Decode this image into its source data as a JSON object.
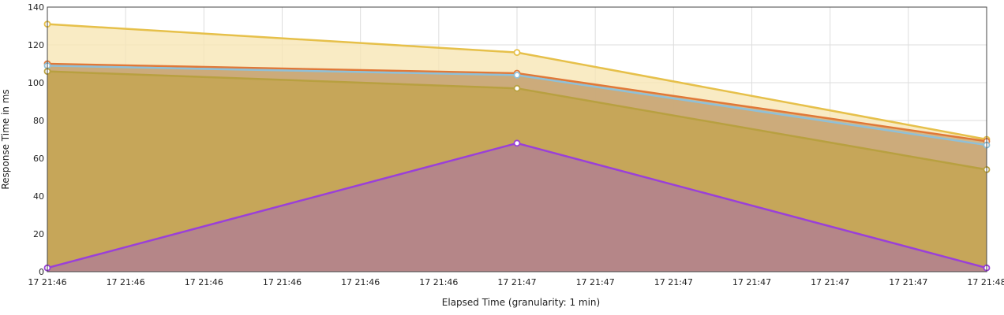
{
  "chart_data": {
    "type": "area",
    "xlabel": "Elapsed Time (granularity: 1 min)",
    "ylabel": "Response Time in ms",
    "ylim": [
      0,
      140
    ],
    "yticks": [
      0,
      20,
      40,
      60,
      80,
      100,
      120,
      140
    ],
    "xtick_labels": [
      "17 21:46",
      "17 21:46",
      "17 21:46",
      "17 21:46",
      "17 21:46",
      "17 21:46",
      "17 21:47",
      "17 21:47",
      "17 21:47",
      "17 21:47",
      "17 21:47",
      "17 21:47",
      "17 21:48"
    ],
    "x_points": [
      "17 21:46",
      "17 21:47",
      "17 21:48"
    ],
    "grid": true,
    "legend": "none",
    "series": [
      {
        "values": [
          131,
          116,
          70
        ],
        "color": "#e6c04a",
        "fill": "#f7e6b3"
      },
      {
        "values": [
          110,
          105,
          69
        ],
        "color": "#e07838",
        "fill": "#c9a877"
      },
      {
        "values": [
          109,
          104,
          67
        ],
        "color": "#8fc0d8",
        "fill": "#c9a877"
      },
      {
        "values": [
          106,
          97,
          54
        ],
        "color": "#b8a040",
        "fill": "#c4a44f"
      },
      {
        "values": [
          2,
          68,
          2
        ],
        "color": "#9a40d8",
        "fill": "#b07d96"
      }
    ]
  }
}
